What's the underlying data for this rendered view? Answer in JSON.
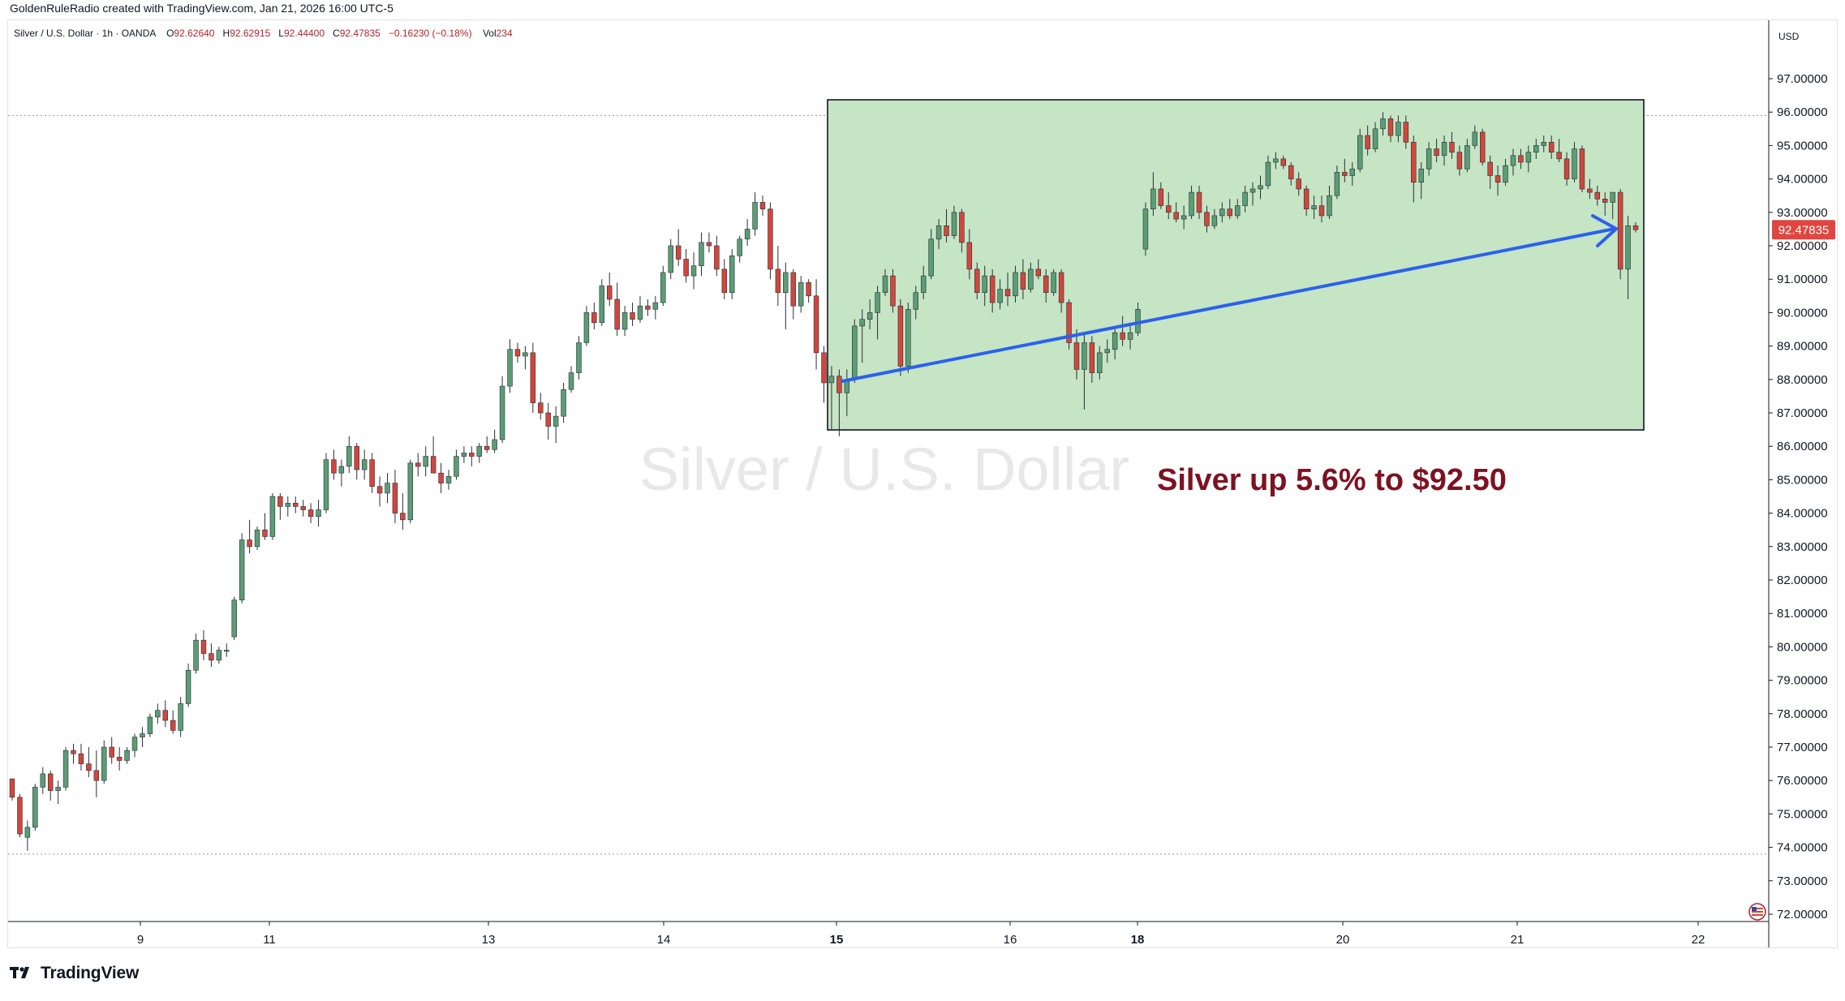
{
  "header": {
    "attribution": "GoldenRuleRadio created with TradingView.com, Jan 21, 2026 16:00 UTC-5"
  },
  "info": {
    "symbol": "Silver / U.S. Dollar · 1h · OANDA",
    "open_label": "O",
    "open": "92.62640",
    "high_label": "H",
    "high": "92.62915",
    "low_label": "L",
    "low": "92.44400",
    "close_label": "C",
    "close": "92.47835",
    "change": "−0.16230 (−0.18%)",
    "volume_label": "Vol",
    "volume": "234"
  },
  "watermark": "Silver / U.S. Dollar",
  "annotation": "Silver up 5.6% to $92.50",
  "currency": "USD",
  "price_badge": "92.47835",
  "footer": {
    "brand": "TradingView",
    "logo_icon": "tradingview-logo-icon"
  },
  "colors": {
    "up": "#5b9d75",
    "down": "#d2463c",
    "box_fill": "#c5e5c4",
    "arrow": "#2c61ee",
    "annotation": "#7d1322",
    "badge": "#e0463f",
    "watermark": "#e8e8e8"
  },
  "chart_data": {
    "type": "candlestick",
    "title": "Silver / U.S. Dollar",
    "interval": "1h",
    "ylim": [
      71.6,
      98.0
    ],
    "y_ticks": [
      97,
      96,
      95,
      94,
      93,
      92,
      91,
      90,
      89,
      88,
      87,
      86,
      85,
      84,
      83,
      82,
      81,
      80,
      79,
      78,
      77,
      76,
      75,
      74,
      73,
      72
    ],
    "x_ticks": [
      "9",
      "11",
      "13",
      "14",
      "15",
      "16",
      "18",
      "20",
      "21",
      "22"
    ],
    "grid": false,
    "last_price": 92.47835,
    "horizontal_levels": [
      95.9,
      73.8
    ],
    "candles": [
      [
        76.05,
        76.05,
        75.4,
        75.5
      ],
      [
        75.5,
        75.6,
        74.3,
        74.4
      ],
      [
        74.3,
        74.8,
        73.9,
        74.6
      ],
      [
        74.6,
        75.9,
        74.5,
        75.8
      ],
      [
        75.8,
        76.4,
        75.6,
        76.2
      ],
      [
        76.2,
        76.3,
        75.4,
        75.7
      ],
      [
        75.7,
        76.0,
        75.3,
        75.8
      ],
      [
        75.8,
        77.0,
        75.7,
        76.9
      ],
      [
        76.9,
        77.1,
        76.5,
        76.8
      ],
      [
        76.8,
        77.1,
        76.3,
        76.5
      ],
      [
        76.5,
        77.0,
        76.1,
        76.3
      ],
      [
        76.3,
        76.9,
        75.5,
        76.0
      ],
      [
        76.0,
        77.2,
        75.9,
        77.0
      ],
      [
        77.0,
        77.3,
        76.5,
        76.7
      ],
      [
        76.7,
        77.0,
        76.3,
        76.6
      ],
      [
        76.6,
        77.0,
        76.5,
        76.9
      ],
      [
        76.9,
        77.4,
        76.7,
        77.3
      ],
      [
        77.3,
        77.6,
        77.0,
        77.4
      ],
      [
        77.4,
        78.0,
        77.3,
        77.9
      ],
      [
        77.9,
        78.3,
        77.7,
        78.1
      ],
      [
        78.1,
        78.4,
        77.6,
        77.8
      ],
      [
        77.8,
        78.1,
        77.4,
        77.5
      ],
      [
        77.5,
        78.5,
        77.3,
        78.3
      ],
      [
        78.3,
        79.5,
        78.2,
        79.3
      ],
      [
        79.3,
        80.4,
        79.2,
        80.2
      ],
      [
        80.2,
        80.5,
        79.6,
        79.8
      ],
      [
        79.8,
        80.1,
        79.4,
        79.6
      ],
      [
        79.6,
        80.0,
        79.5,
        79.9
      ],
      [
        79.9,
        80.1,
        79.7,
        79.9
      ],
      [
        80.3,
        81.5,
        80.2,
        81.4
      ],
      [
        81.4,
        83.4,
        81.3,
        83.2
      ],
      [
        83.2,
        83.8,
        82.8,
        83.0
      ],
      [
        83.0,
        83.6,
        82.9,
        83.5
      ],
      [
        83.5,
        84.0,
        83.2,
        83.3
      ],
      [
        83.3,
        84.6,
        83.2,
        84.5
      ],
      [
        84.5,
        84.6,
        83.8,
        84.2
      ],
      [
        84.2,
        84.5,
        83.9,
        84.3
      ],
      [
        84.3,
        84.5,
        84.0,
        84.2
      ],
      [
        84.2,
        84.4,
        83.9,
        84.1
      ],
      [
        84.1,
        84.3,
        83.7,
        83.9
      ],
      [
        83.9,
        84.4,
        83.6,
        84.1
      ],
      [
        84.1,
        85.8,
        84.0,
        85.6
      ],
      [
        85.6,
        85.9,
        85.0,
        85.2
      ],
      [
        85.2,
        85.6,
        84.8,
        85.4
      ],
      [
        85.4,
        86.3,
        85.2,
        86.0
      ],
      [
        86.0,
        86.1,
        85.0,
        85.3
      ],
      [
        85.3,
        85.9,
        85.0,
        85.6
      ],
      [
        85.6,
        85.8,
        84.6,
        84.8
      ],
      [
        84.8,
        85.1,
        84.2,
        84.6
      ],
      [
        84.6,
        85.2,
        84.3,
        84.9
      ],
      [
        84.9,
        85.3,
        83.7,
        84.0
      ],
      [
        84.0,
        84.6,
        83.5,
        83.8
      ],
      [
        83.8,
        85.6,
        83.7,
        85.5
      ],
      [
        85.5,
        85.8,
        85.1,
        85.4
      ],
      [
        85.4,
        86.0,
        85.1,
        85.7
      ],
      [
        85.7,
        86.3,
        85.4,
        85.2
      ],
      [
        85.2,
        85.5,
        84.6,
        84.9
      ],
      [
        84.9,
        85.3,
        84.7,
        85.1
      ],
      [
        85.1,
        85.9,
        85.0,
        85.7
      ],
      [
        85.7,
        86.0,
        85.5,
        85.8
      ],
      [
        85.8,
        86.0,
        85.4,
        85.7
      ],
      [
        85.7,
        86.1,
        85.5,
        86.0
      ],
      [
        86.0,
        86.3,
        85.8,
        85.9
      ],
      [
        85.9,
        86.5,
        85.8,
        86.2
      ],
      [
        86.2,
        88.1,
        86.1,
        87.8
      ],
      [
        87.8,
        89.2,
        87.6,
        88.9
      ],
      [
        88.9,
        89.1,
        88.5,
        88.7
      ],
      [
        88.7,
        89.0,
        88.3,
        88.8
      ],
      [
        88.8,
        89.1,
        87.0,
        87.3
      ],
      [
        87.3,
        87.6,
        86.8,
        87.0
      ],
      [
        87.0,
        87.3,
        86.2,
        86.6
      ],
      [
        86.6,
        87.2,
        86.1,
        86.9
      ],
      [
        86.9,
        87.9,
        86.7,
        87.7
      ],
      [
        87.7,
        88.4,
        87.6,
        88.2
      ],
      [
        88.2,
        89.3,
        88.0,
        89.1
      ],
      [
        89.1,
        90.2,
        89.0,
        90.0
      ],
      [
        90.0,
        90.3,
        89.5,
        89.7
      ],
      [
        89.7,
        91.0,
        89.6,
        90.8
      ],
      [
        90.8,
        91.2,
        90.2,
        90.4
      ],
      [
        90.4,
        90.9,
        89.3,
        89.5
      ],
      [
        89.5,
        90.2,
        89.3,
        90.0
      ],
      [
        90.0,
        90.3,
        89.6,
        89.8
      ],
      [
        89.8,
        90.5,
        89.7,
        90.2
      ],
      [
        90.2,
        90.4,
        89.9,
        90.1
      ],
      [
        90.1,
        90.5,
        89.8,
        90.3
      ],
      [
        90.3,
        91.4,
        90.2,
        91.2
      ],
      [
        91.2,
        92.2,
        91.0,
        92.0
      ],
      [
        92.0,
        92.5,
        91.4,
        91.6
      ],
      [
        91.6,
        91.9,
        90.9,
        91.1
      ],
      [
        91.1,
        91.8,
        90.7,
        91.4
      ],
      [
        91.4,
        92.4,
        91.1,
        92.1
      ],
      [
        92.1,
        92.4,
        91.8,
        92.0
      ],
      [
        92.0,
        92.3,
        91.1,
        91.3
      ],
      [
        91.3,
        91.6,
        90.4,
        90.6
      ],
      [
        90.6,
        91.9,
        90.4,
        91.7
      ],
      [
        91.7,
        92.3,
        91.5,
        92.2
      ],
      [
        92.2,
        92.8,
        92.0,
        92.5
      ],
      [
        92.5,
        93.6,
        92.3,
        93.3
      ],
      [
        93.3,
        93.5,
        92.9,
        93.1
      ],
      [
        93.1,
        93.3,
        91.0,
        91.3
      ],
      [
        91.3,
        92.0,
        90.2,
        90.6
      ],
      [
        90.6,
        91.5,
        89.5,
        91.2
      ],
      [
        91.2,
        91.3,
        89.8,
        90.2
      ],
      [
        90.2,
        91.1,
        90.0,
        90.9
      ],
      [
        90.9,
        91.0,
        90.3,
        90.5
      ],
      [
        90.5,
        91.0,
        88.3,
        88.8
      ],
      [
        88.8,
        89.0,
        87.3,
        87.9
      ],
      [
        87.9,
        88.4,
        86.5,
        88.1
      ],
      [
        88.1,
        88.3,
        86.3,
        87.6
      ],
      [
        87.6,
        88.3,
        86.9,
        88.0
      ],
      [
        88.0,
        89.8,
        87.9,
        89.6
      ],
      [
        89.6,
        90.1,
        88.5,
        89.8
      ],
      [
        89.8,
        90.4,
        89.5,
        90.0
      ],
      [
        90.0,
        90.8,
        89.2,
        90.6
      ],
      [
        90.6,
        91.3,
        90.5,
        91.1
      ],
      [
        91.1,
        91.3,
        90.0,
        90.2
      ],
      [
        90.2,
        90.4,
        88.1,
        88.4
      ],
      [
        88.4,
        90.3,
        88.2,
        90.1
      ],
      [
        90.1,
        90.8,
        89.8,
        90.6
      ],
      [
        90.6,
        91.4,
        90.4,
        91.1
      ],
      [
        91.1,
        92.5,
        91.0,
        92.2
      ],
      [
        92.2,
        92.8,
        91.9,
        92.6
      ],
      [
        92.6,
        93.1,
        92.1,
        92.3
      ],
      [
        92.3,
        93.2,
        92.2,
        93.0
      ],
      [
        93.0,
        93.1,
        91.8,
        92.1
      ],
      [
        92.1,
        92.5,
        91.0,
        91.3
      ],
      [
        91.3,
        91.5,
        90.4,
        90.6
      ],
      [
        90.6,
        91.4,
        90.2,
        91.1
      ],
      [
        91.1,
        91.3,
        90.0,
        90.3
      ],
      [
        90.3,
        91.0,
        90.1,
        90.7
      ],
      [
        90.7,
        91.2,
        90.2,
        90.5
      ],
      [
        90.5,
        91.4,
        90.3,
        91.2
      ],
      [
        91.2,
        91.6,
        90.4,
        90.7
      ],
      [
        90.7,
        91.5,
        90.6,
        91.3
      ],
      [
        91.3,
        91.6,
        91.0,
        91.1
      ],
      [
        91.1,
        91.3,
        90.3,
        90.6
      ],
      [
        90.6,
        91.3,
        90.5,
        91.2
      ],
      [
        91.2,
        91.3,
        90.0,
        90.3
      ],
      [
        90.3,
        90.4,
        88.9,
        89.1
      ],
      [
        89.1,
        89.5,
        88.0,
        88.3
      ],
      [
        88.3,
        89.4,
        87.1,
        89.1
      ],
      [
        89.1,
        89.3,
        87.9,
        88.2
      ],
      [
        88.2,
        89.0,
        88.0,
        88.8
      ],
      [
        88.8,
        89.2,
        88.5,
        88.9
      ],
      [
        88.9,
        89.6,
        88.6,
        89.4
      ],
      [
        89.4,
        89.9,
        89.0,
        89.2
      ],
      [
        89.2,
        89.6,
        88.9,
        89.4
      ],
      [
        89.4,
        90.3,
        89.3,
        90.1
      ],
      [
        91.9,
        93.3,
        91.7,
        93.1
      ],
      [
        93.1,
        94.2,
        92.9,
        93.7
      ],
      [
        93.7,
        93.9,
        93.1,
        93.2
      ],
      [
        93.2,
        93.6,
        92.8,
        93.0
      ],
      [
        93.0,
        93.3,
        92.7,
        92.8
      ],
      [
        92.8,
        93.2,
        92.5,
        92.9
      ],
      [
        92.9,
        93.8,
        92.8,
        93.6
      ],
      [
        93.6,
        93.8,
        92.8,
        93.0
      ],
      [
        93.0,
        93.2,
        92.4,
        92.6
      ],
      [
        92.6,
        93.1,
        92.5,
        92.9
      ],
      [
        92.9,
        93.3,
        92.7,
        93.1
      ],
      [
        93.1,
        93.4,
        92.8,
        92.9
      ],
      [
        92.9,
        93.4,
        92.8,
        93.2
      ],
      [
        93.2,
        93.8,
        93.0,
        93.6
      ],
      [
        93.6,
        93.9,
        93.2,
        93.7
      ],
      [
        93.7,
        94.1,
        93.4,
        93.8
      ],
      [
        93.8,
        94.7,
        93.7,
        94.5
      ],
      [
        94.5,
        94.8,
        94.3,
        94.6
      ],
      [
        94.6,
        94.7,
        94.3,
        94.4
      ],
      [
        94.4,
        94.5,
        93.8,
        94.0
      ],
      [
        94.0,
        94.2,
        93.5,
        93.7
      ],
      [
        93.7,
        93.8,
        92.9,
        93.1
      ],
      [
        93.1,
        93.5,
        92.8,
        93.2
      ],
      [
        93.2,
        93.5,
        92.7,
        92.9
      ],
      [
        92.9,
        93.8,
        92.8,
        93.5
      ],
      [
        93.5,
        94.4,
        93.4,
        94.2
      ],
      [
        94.2,
        94.6,
        93.9,
        94.1
      ],
      [
        94.1,
        94.5,
        93.8,
        94.3
      ],
      [
        94.3,
        95.5,
        94.2,
        95.3
      ],
      [
        95.3,
        95.6,
        94.7,
        94.9
      ],
      [
        94.9,
        95.7,
        94.8,
        95.5
      ],
      [
        95.5,
        96.0,
        95.3,
        95.8
      ],
      [
        95.8,
        95.9,
        95.1,
        95.3
      ],
      [
        95.3,
        95.9,
        95.1,
        95.7
      ],
      [
        95.7,
        95.9,
        94.9,
        95.1
      ],
      [
        95.1,
        95.3,
        93.3,
        93.9
      ],
      [
        93.9,
        94.5,
        93.4,
        94.3
      ],
      [
        94.3,
        95.1,
        94.1,
        94.9
      ],
      [
        94.9,
        95.2,
        94.5,
        94.7
      ],
      [
        94.7,
        95.3,
        94.4,
        95.1
      ],
      [
        95.1,
        95.4,
        94.6,
        94.8
      ],
      [
        94.8,
        95.0,
        94.1,
        94.3
      ],
      [
        94.3,
        95.2,
        94.2,
        95.0
      ],
      [
        95.0,
        95.6,
        94.9,
        95.4
      ],
      [
        95.4,
        95.5,
        94.4,
        94.5
      ],
      [
        94.5,
        94.7,
        93.7,
        94.1
      ],
      [
        94.1,
        94.4,
        93.5,
        93.9
      ],
      [
        93.9,
        94.6,
        93.8,
        94.4
      ],
      [
        94.4,
        94.9,
        94.1,
        94.7
      ],
      [
        94.7,
        94.9,
        94.3,
        94.5
      ],
      [
        94.5,
        95.0,
        94.2,
        94.8
      ],
      [
        94.8,
        95.2,
        94.6,
        95.0
      ],
      [
        95.0,
        95.3,
        94.8,
        95.1
      ],
      [
        95.1,
        95.3,
        94.6,
        94.8
      ],
      [
        94.8,
        95.2,
        94.5,
        94.6
      ],
      [
        94.6,
        94.8,
        93.8,
        94.0
      ],
      [
        94.0,
        95.1,
        93.9,
        94.9
      ],
      [
        94.9,
        95.0,
        93.6,
        93.7
      ],
      [
        93.7,
        94.0,
        93.4,
        93.6
      ],
      [
        93.6,
        93.8,
        93.2,
        93.4
      ],
      [
        93.4,
        93.6,
        92.9,
        93.3
      ],
      [
        93.3,
        93.6,
        92.8,
        93.6
      ],
      [
        93.6,
        93.7,
        91.0,
        91.3
      ],
      [
        91.3,
        92.9,
        90.4,
        92.6
      ],
      [
        92.6,
        92.7,
        92.4,
        92.48
      ]
    ]
  }
}
